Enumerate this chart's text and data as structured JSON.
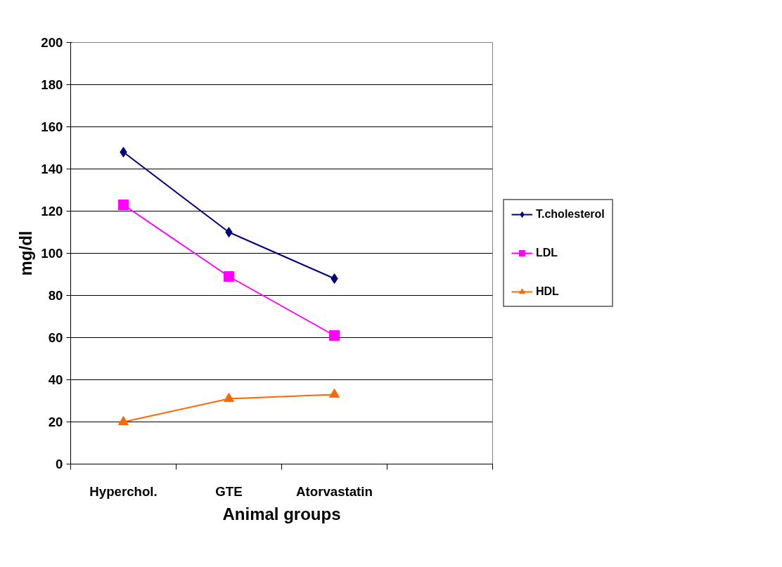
{
  "chart_data": {
    "type": "line",
    "xlabel": "Animal groups",
    "ylabel": "mg/dl",
    "categories": [
      "Hyperchol.",
      "GTE",
      "Atorvastatin",
      null
    ],
    "series": [
      {
        "name": "T.cholesterol",
        "color": "#000080",
        "marker": "diamond",
        "values": [
          148,
          110,
          88,
          null
        ]
      },
      {
        "name": "LDL",
        "color": "#ff00ff",
        "marker": "square",
        "values": [
          123,
          89,
          61,
          null
        ]
      },
      {
        "name": "HDL",
        "color": "#ff6600",
        "marker": "triangle",
        "values": [
          20,
          31,
          33,
          null
        ]
      }
    ],
    "ylim": [
      0,
      200
    ],
    "yticks": [
      0,
      20,
      40,
      60,
      80,
      100,
      120,
      140,
      160,
      180,
      200
    ],
    "grid": "y",
    "legend": "right",
    "line_style": "solid"
  }
}
